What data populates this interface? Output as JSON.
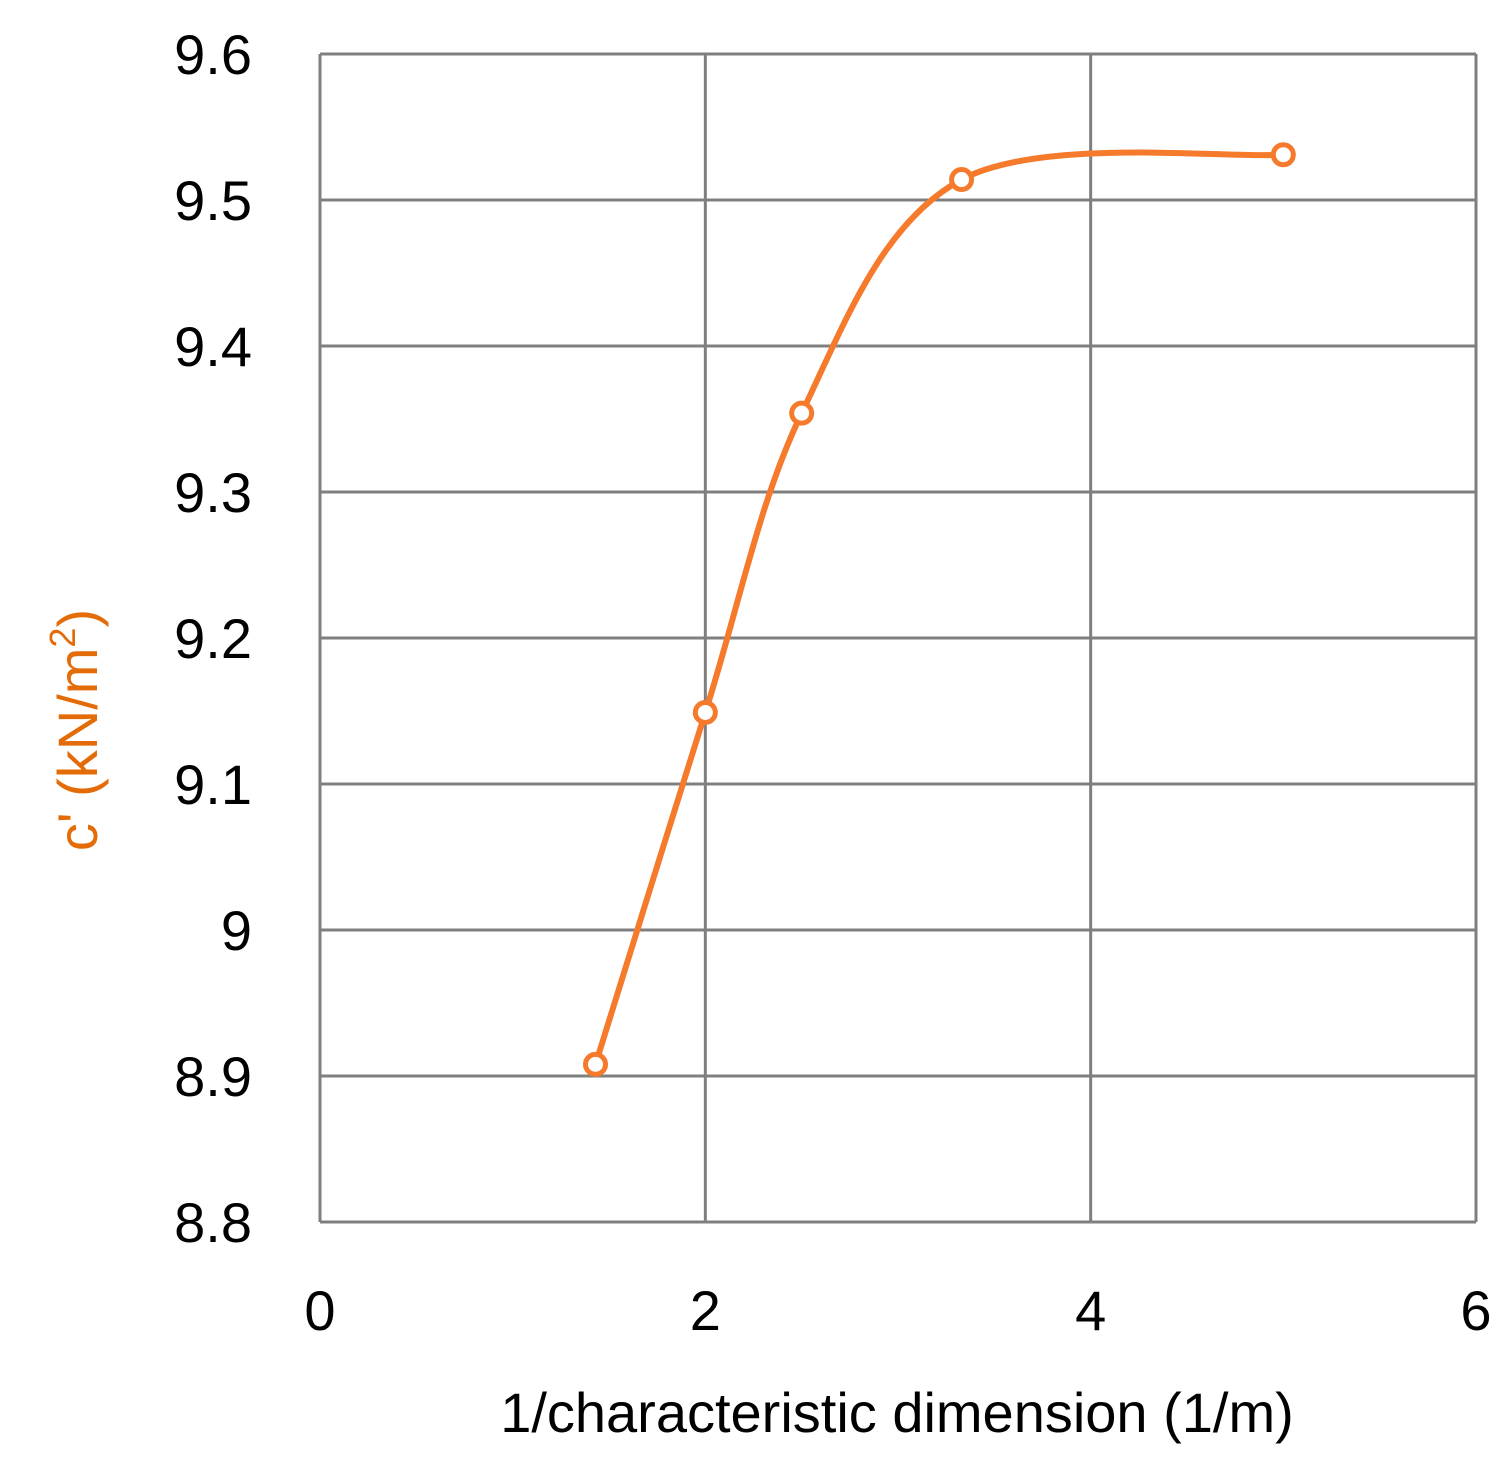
{
  "colors": {
    "series": "#F57A2B",
    "grid": "#7F7F7F",
    "ylabel": "#E36C09",
    "text": "#000000",
    "background": "#ffffff"
  },
  "chart_data": {
    "type": "line",
    "smooth": true,
    "markers": "hollow-circle",
    "title": "",
    "xlabel": "1/characteristic dimension (1/m)",
    "ylabel": {
      "prefix": "c' (kN/m",
      "superscript": "2",
      "suffix": ")"
    },
    "xlim": [
      0,
      6
    ],
    "ylim": [
      8.8,
      9.6
    ],
    "xticks": [
      0,
      2,
      4,
      6
    ],
    "xtick_labels": [
      "0",
      "2",
      "4",
      "6"
    ],
    "yticks": [
      8.8,
      8.9,
      9.0,
      9.1,
      9.2,
      9.3,
      9.4,
      9.5,
      9.6
    ],
    "ytick_labels": [
      "8.8",
      "8.9",
      "9",
      "9.1",
      "9.2",
      "9.3",
      "9.4",
      "9.5",
      "9.6"
    ],
    "grid": true,
    "legend": "none",
    "series": [
      {
        "x": [
          1.43,
          2.0,
          2.5,
          3.33,
          5.0
        ],
        "y": [
          8.908,
          9.149,
          9.354,
          9.514,
          9.531
        ]
      }
    ]
  }
}
